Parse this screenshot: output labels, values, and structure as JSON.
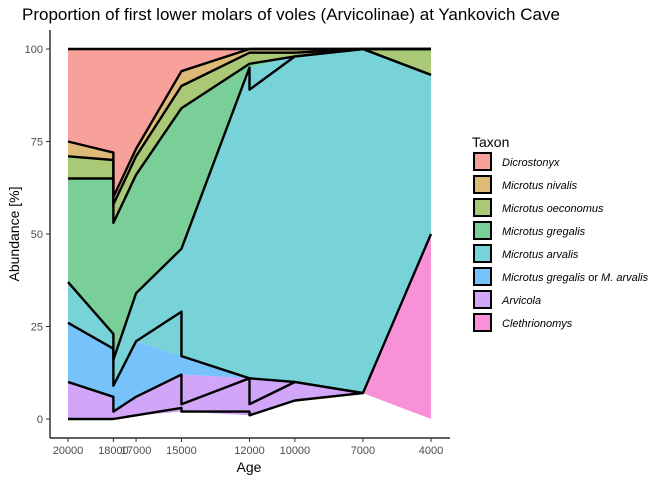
{
  "chart_data": {
    "type": "area",
    "title": "Proportion of first lower molars of voles (Arvicolinae) at Yankovich Cave",
    "xlabel": "Age",
    "ylabel": "Abundance [%]",
    "x": [
      20000,
      18000,
      17000,
      15000,
      12000,
      10000,
      7000,
      4000
    ],
    "x_tick_labels": [
      "20000",
      "18000",
      "17000",
      "15000",
      "12000",
      "10000",
      "7000",
      "4000"
    ],
    "x_reversed": true,
    "xlim": [
      20000,
      4000
    ],
    "ylim": [
      0,
      100
    ],
    "y_ticks": [
      0,
      25,
      50,
      75,
      100
    ],
    "y_tick_labels": [
      "0",
      "25",
      "50",
      "75",
      "100"
    ],
    "legend_title": "Taxon",
    "legend_position": "right",
    "series": [
      {
        "name": "Dicrostonyx",
        "color": "#F8A19B",
        "points": [
          [
            20000,
            75,
            100
          ],
          [
            18000,
            72,
            100
          ],
          [
            18000,
            60,
            100
          ],
          [
            17000,
            73,
            100
          ],
          [
            15000,
            94,
            100
          ],
          [
            12000,
            100,
            100
          ],
          [
            10000,
            100,
            100
          ],
          [
            7000,
            100,
            100
          ],
          [
            4000,
            100,
            100
          ]
        ]
      },
      {
        "name": "Microtus nivalis",
        "color": "#DDBB77",
        "points": [
          [
            20000,
            71,
            75
          ],
          [
            18000,
            70,
            72
          ],
          [
            18000,
            58,
            60
          ],
          [
            17000,
            71,
            73
          ],
          [
            15000,
            90,
            94
          ],
          [
            12000,
            99,
            100
          ],
          [
            10000,
            99,
            100
          ],
          [
            7000,
            100,
            100
          ],
          [
            4000,
            100,
            100
          ]
        ]
      },
      {
        "name": "Microtus oeconomus",
        "color": "#A9C977",
        "points": [
          [
            20000,
            65,
            71
          ],
          [
            18000,
            65,
            70
          ],
          [
            18000,
            53,
            58
          ],
          [
            17000,
            66,
            71
          ],
          [
            15000,
            84,
            90
          ],
          [
            12000,
            96,
            99
          ],
          [
            10000,
            98,
            99
          ],
          [
            7000,
            100,
            100
          ],
          [
            4000,
            93,
            100
          ]
        ]
      },
      {
        "name": "Microtus gregalis",
        "color": "#7ACF99",
        "points": [
          [
            20000,
            37,
            65
          ],
          [
            18000,
            23,
            65
          ],
          [
            18000,
            16,
            53
          ],
          [
            17000,
            34,
            66
          ],
          [
            15000,
            46,
            84
          ],
          [
            12000,
            95,
            96
          ],
          [
            10000,
            98,
            98
          ],
          [
            7000,
            100,
            100
          ],
          [
            4000,
            93,
            93
          ]
        ]
      },
      {
        "name": "Microtus arvalis",
        "color": "#77D3D7",
        "points": [
          [
            20000,
            26,
            37
          ],
          [
            18000,
            19,
            23
          ],
          [
            18000,
            9,
            16
          ],
          [
            17000,
            21,
            34
          ],
          [
            15000,
            17,
            46
          ],
          [
            12000,
            11,
            95
          ],
          [
            10000,
            10,
            98
          ],
          [
            7000,
            7,
            100
          ],
          [
            4000,
            50,
            93
          ]
        ]
      },
      {
        "name": "Microtus gregalis or M. arvalis",
        "color": "#77C2FA",
        "points": [
          [
            20000,
            10,
            26
          ],
          [
            18000,
            6,
            19
          ],
          [
            18000,
            2,
            9
          ],
          [
            17000,
            6,
            21
          ],
          [
            15000,
            12,
            17
          ],
          [
            12000,
            11,
            11
          ],
          [
            10000,
            10,
            10
          ],
          [
            7000,
            7,
            7
          ],
          [
            4000,
            50,
            50
          ]
        ]
      },
      {
        "name": "Arvicola",
        "color": "#D1A5F8",
        "points": [
          [
            20000,
            0,
            10
          ],
          [
            18000,
            0,
            6
          ],
          [
            18000,
            0,
            2
          ],
          [
            17000,
            1,
            6
          ],
          [
            15000,
            2,
            12
          ],
          [
            12000,
            1,
            11
          ],
          [
            10000,
            5,
            10
          ],
          [
            7000,
            7,
            7
          ],
          [
            4000,
            50,
            50
          ]
        ]
      },
      {
        "name": "Clethrionomys",
        "color": "#F891D8",
        "points": [
          [
            20000,
            0,
            0
          ],
          [
            18000,
            0,
            0
          ],
          [
            18000,
            0,
            0
          ],
          [
            17000,
            1,
            1
          ],
          [
            15000,
            2,
            2
          ],
          [
            12000,
            1,
            1
          ],
          [
            10000,
            5,
            5
          ],
          [
            7000,
            7,
            7
          ],
          [
            4000,
            0,
            50
          ]
        ]
      }
    ],
    "boundary_lines": [
      {
        "name": "Dicrostonyx",
        "points": [
          [
            20000,
            75
          ],
          [
            18000,
            72
          ],
          [
            18000,
            60
          ],
          [
            17000,
            73
          ],
          [
            15000,
            94
          ],
          [
            12000,
            100
          ],
          [
            7000,
            100
          ],
          [
            4000,
            100
          ]
        ]
      },
      {
        "name": "Microtus nivalis",
        "points": [
          [
            20000,
            71
          ],
          [
            18000,
            70
          ],
          [
            18000,
            58
          ],
          [
            17000,
            71
          ],
          [
            15000,
            90
          ],
          [
            12000,
            99
          ],
          [
            10000,
            99
          ],
          [
            7000,
            100
          ],
          [
            4000,
            100
          ]
        ]
      },
      {
        "name": "Microtus oeconomus",
        "points": [
          [
            20000,
            65
          ],
          [
            18000,
            65
          ],
          [
            18000,
            53
          ],
          [
            17000,
            66
          ],
          [
            15000,
            84
          ],
          [
            12000,
            96
          ],
          [
            10000,
            98
          ],
          [
            7000,
            100
          ],
          [
            4000,
            93
          ]
        ]
      },
      {
        "name": "Microtus gregalis",
        "points": [
          [
            20000,
            37
          ],
          [
            18000,
            23
          ],
          [
            18000,
            16
          ],
          [
            17000,
            34
          ],
          [
            15000,
            46
          ],
          [
            12000,
            95
          ],
          [
            12000,
            89
          ],
          [
            10000,
            98
          ],
          [
            7000,
            100
          ],
          [
            4000,
            93
          ]
        ]
      },
      {
        "name": "Microtus arvalis",
        "points": [
          [
            20000,
            26
          ],
          [
            18000,
            19
          ],
          [
            18000,
            9
          ],
          [
            17000,
            21
          ],
          [
            15000,
            29
          ],
          [
            15000,
            17
          ],
          [
            12000,
            11
          ],
          [
            10000,
            10
          ],
          [
            7000,
            7
          ],
          [
            4000,
            50
          ]
        ]
      },
      {
        "name": "Microtus gregalis or M. arvalis",
        "points": [
          [
            20000,
            10
          ],
          [
            18000,
            6
          ],
          [
            18000,
            2
          ],
          [
            17000,
            6
          ],
          [
            15000,
            12
          ],
          [
            15000,
            4
          ],
          [
            12000,
            11
          ],
          [
            12000,
            4
          ],
          [
            10000,
            10
          ],
          [
            7000,
            7
          ]
        ]
      },
      {
        "name": "Arvicola",
        "points": [
          [
            20000,
            0
          ],
          [
            18000,
            0
          ],
          [
            17000,
            1
          ],
          [
            15000,
            3
          ],
          [
            15000,
            2
          ],
          [
            12000,
            2
          ],
          [
            12000,
            1
          ],
          [
            10000,
            5
          ],
          [
            7000,
            7
          ]
        ]
      }
    ],
    "grid": false
  }
}
